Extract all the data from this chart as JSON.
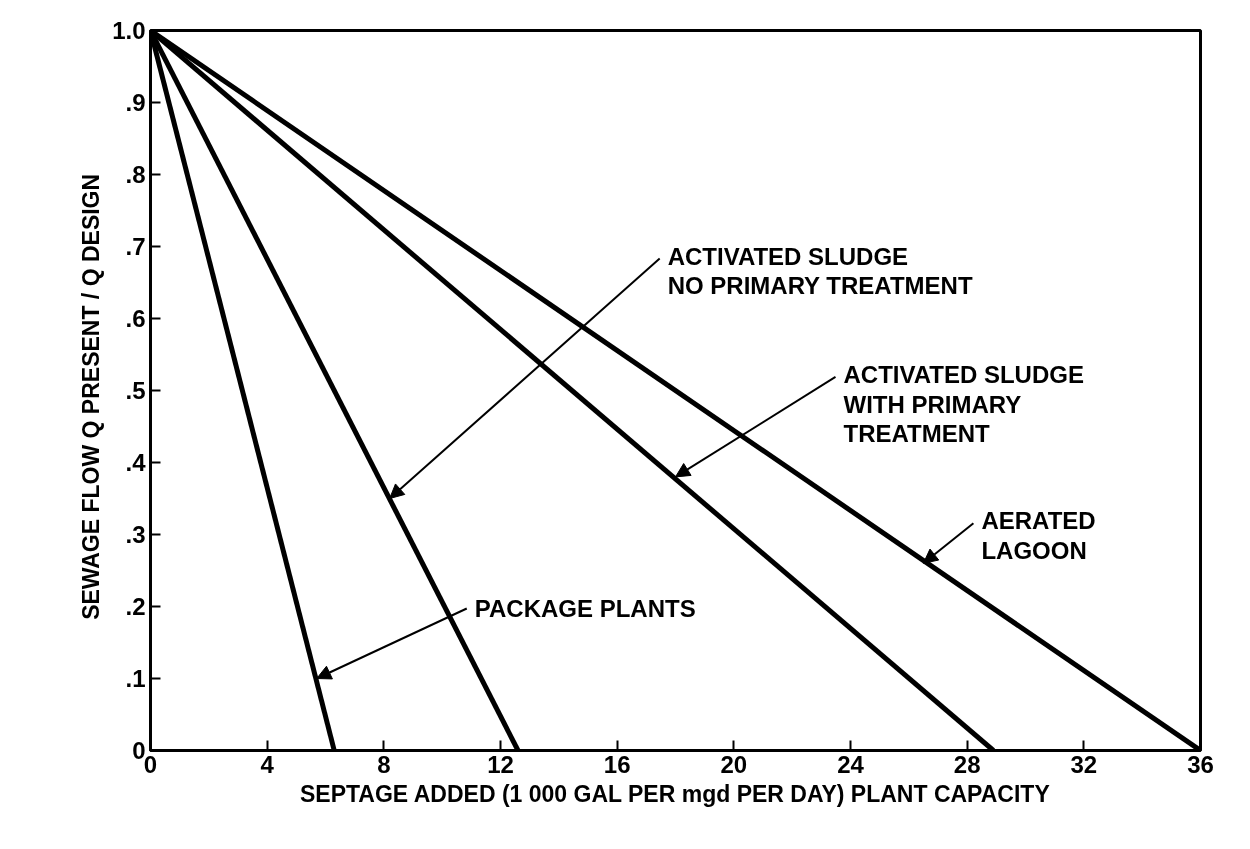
{
  "chart_data": {
    "type": "line",
    "xlabel": "SEPTAGE ADDED (1 000 GAL PER mgd PER DAY) PLANT CAPACITY",
    "ylabel": "SEWAGE FLOW   Q PRESENT / Q DESIGN",
    "xlim": [
      0,
      36
    ],
    "ylim": [
      0,
      1
    ],
    "xticks": [
      0,
      4,
      8,
      12,
      16,
      20,
      24,
      28,
      32,
      36
    ],
    "yticks": [
      0,
      {
        "value": 0.1,
        "label": ".1"
      },
      {
        "value": 0.2,
        "label": ".2"
      },
      {
        "value": 0.3,
        "label": ".3"
      },
      {
        "value": 0.4,
        "label": ".4"
      },
      {
        "value": 0.5,
        "label": ".5"
      },
      {
        "value": 0.6,
        "label": ".6"
      },
      {
        "value": 0.7,
        "label": ".7"
      },
      {
        "value": 0.8,
        "label": ".8"
      },
      {
        "value": 0.9,
        "label": ".9"
      },
      {
        "value": 1,
        "label": "1.0"
      }
    ],
    "grid": false,
    "series": [
      {
        "color": "#000000",
        "x": [
          0,
          6.3
        ],
        "values": [
          1,
          0
        ]
      },
      {
        "color": "#000000",
        "x": [
          0,
          12.6
        ],
        "values": [
          1,
          0
        ]
      },
      {
        "color": "#000000",
        "x": [
          0,
          28.9
        ],
        "values": [
          1,
          0
        ]
      },
      {
        "color": "#000000",
        "x": [
          0,
          36
        ],
        "values": [
          1,
          0
        ]
      }
    ],
    "annotations": [
      {
        "text": "ACTIVATED SLUDGE\nNO PRIMARY TREATMENT",
        "x": 8.2,
        "y": 0.35
      },
      {
        "text": "ACTIVATED SLUDGE\nWITH PRIMARY\nTREATMENT",
        "x": 18,
        "y": 0.38
      },
      {
        "text": "AERATED\nLAGOON",
        "x": 26.5,
        "y": 0.26
      },
      {
        "text": "PACKAGE PLANTS",
        "x": 5.7,
        "y": 0.1
      }
    ]
  }
}
